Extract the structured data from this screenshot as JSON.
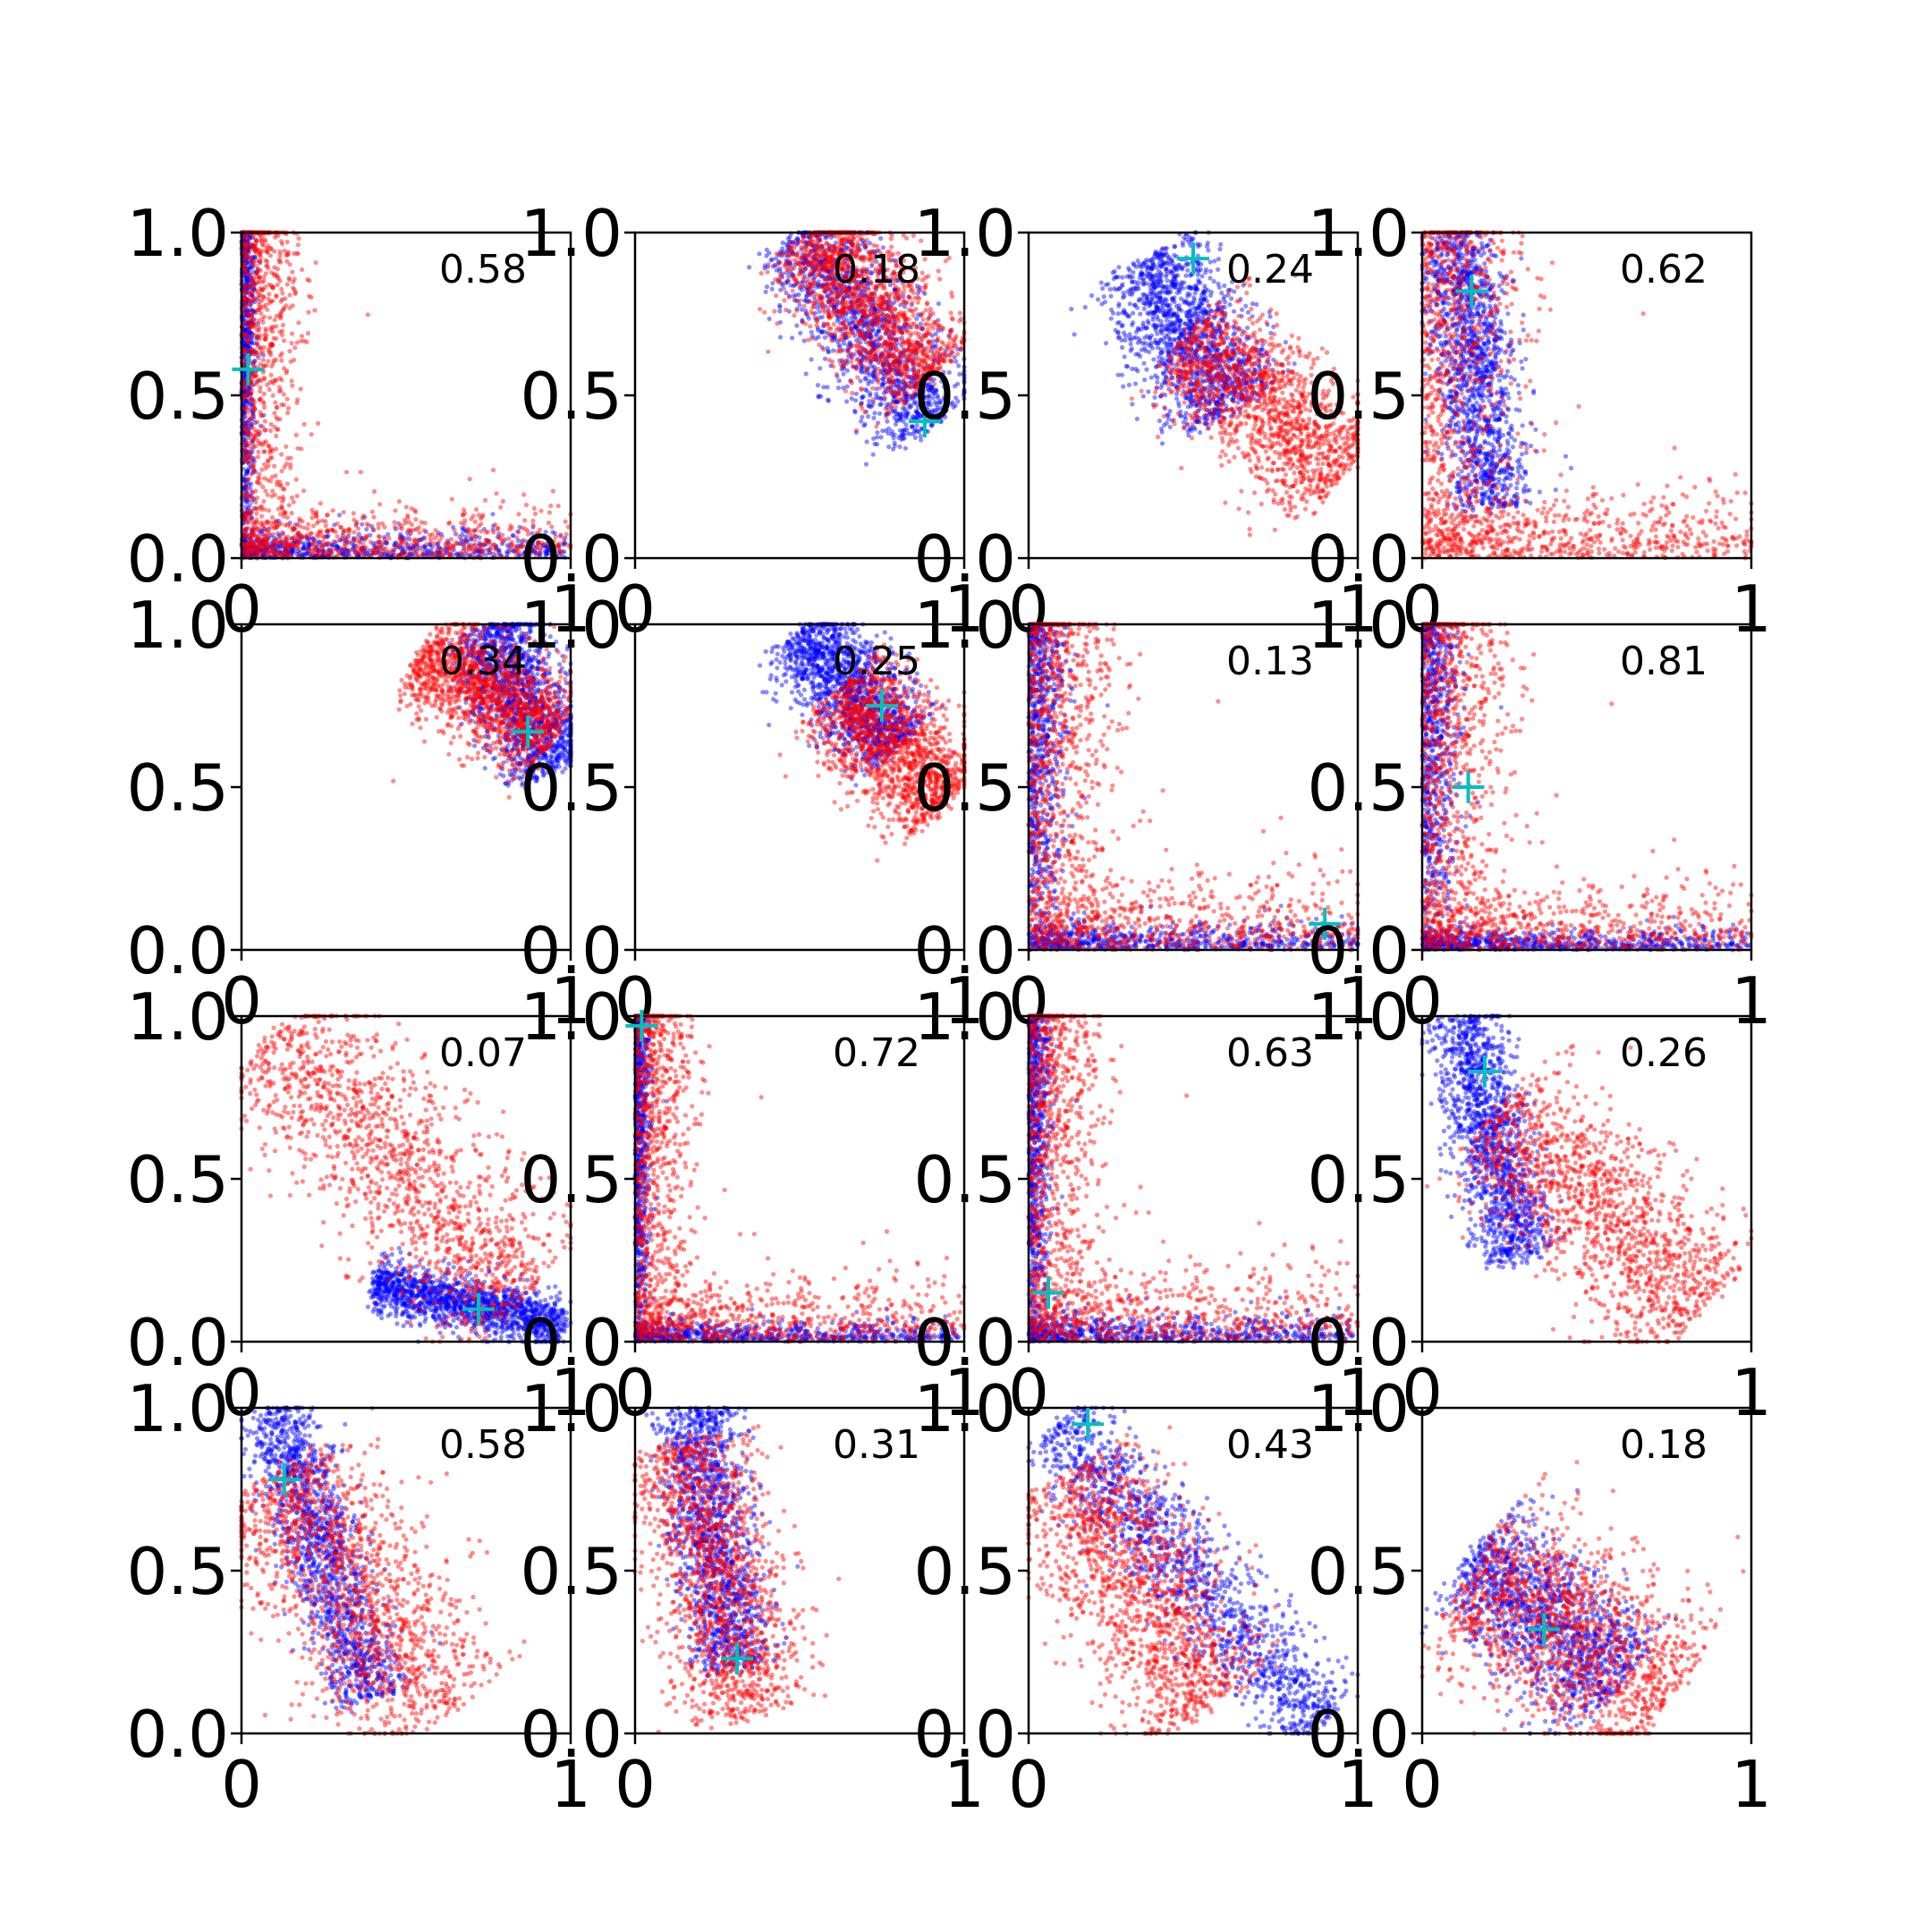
{
  "colors": {
    "series_a": "#0000ff",
    "series_b": "#ff0000",
    "marker": "#00bfbf",
    "axis": "#000000"
  },
  "chart_data": {
    "type": "scatter",
    "grid": "4x4",
    "grid_lines": false,
    "legend": "none",
    "xlim": [
      0,
      1
    ],
    "ylim": [
      0,
      1
    ],
    "x_tick_labels": [
      "0",
      "1"
    ],
    "y_tick_labels": [
      "0.0",
      "0.5",
      "1.0"
    ],
    "panels": [
      {
        "label": "0.58",
        "marker": [
          0.02,
          0.58
        ],
        "blue": {
          "shape": "L",
          "xw": 0.02,
          "yw": 0.04,
          "cx": 0.03,
          "cy": 0.03
        },
        "red": {
          "shape": "L",
          "xw": 0.08,
          "yw": 0.08,
          "cx": 0.12,
          "cy": 0.1
        }
      },
      {
        "label": "0.18",
        "marker": [
          0.88,
          0.42
        ],
        "blue": {
          "shape": "band",
          "from": [
            0.5,
            1.0
          ],
          "to": [
            0.9,
            0.4
          ],
          "width": 0.08
        },
        "red": {
          "shape": "band",
          "from": [
            0.52,
            1.0
          ],
          "to": [
            0.9,
            0.55
          ],
          "width": 0.09
        }
      },
      {
        "label": "0.24",
        "marker": [
          0.5,
          0.92
        ],
        "blue": {
          "shape": "band",
          "from": [
            0.35,
            0.92
          ],
          "to": [
            0.62,
            0.45
          ],
          "width": 0.09
        },
        "red": {
          "shape": "band",
          "from": [
            0.48,
            0.68
          ],
          "to": [
            0.95,
            0.25
          ],
          "width": 0.1
        }
      },
      {
        "label": "0.62",
        "marker": [
          0.15,
          0.82
        ],
        "blue": {
          "shape": "band",
          "from": [
            0.1,
            1.0
          ],
          "to": [
            0.22,
            0.15
          ],
          "width": 0.06
        },
        "red": {
          "shape": "L",
          "xw": 0.14,
          "yw": 0.1,
          "cx": 0.22,
          "cy": 0.12
        }
      },
      {
        "label": "0.34",
        "marker": [
          0.87,
          0.67
        ],
        "blue": {
          "shape": "band",
          "from": [
            0.75,
            1.0
          ],
          "to": [
            0.95,
            0.55
          ],
          "width": 0.07
        },
        "red": {
          "shape": "band",
          "from": [
            0.55,
            0.92
          ],
          "to": [
            0.95,
            0.65
          ],
          "width": 0.08
        }
      },
      {
        "label": "0.25",
        "marker": [
          0.75,
          0.75
        ],
        "blue": {
          "shape": "band",
          "from": [
            0.5,
            0.98
          ],
          "to": [
            0.8,
            0.62
          ],
          "width": 0.07
        },
        "red": {
          "shape": "band",
          "from": [
            0.62,
            0.8
          ],
          "to": [
            0.95,
            0.45
          ],
          "width": 0.09
        }
      },
      {
        "label": "0.13",
        "marker": [
          0.9,
          0.08
        ],
        "blue": {
          "shape": "L",
          "xw": 0.05,
          "yw": 0.04,
          "cx": 0.22,
          "cy": 0.12
        },
        "red": {
          "shape": "L",
          "xw": 0.12,
          "yw": 0.12,
          "cx": 0.2,
          "cy": 0.2
        }
      },
      {
        "label": "0.81",
        "marker": [
          0.14,
          0.5
        ],
        "blue": {
          "shape": "L",
          "xw": 0.05,
          "yw": 0.03,
          "cx": 0.08,
          "cy": 0.08
        },
        "red": {
          "shape": "L",
          "xw": 0.12,
          "yw": 0.1,
          "cx": 0.15,
          "cy": 0.15
        }
      },
      {
        "label": "0.07",
        "marker": [
          0.72,
          0.1
        ],
        "blue": {
          "shape": "band",
          "from": [
            0.4,
            0.18
          ],
          "to": [
            0.98,
            0.05
          ],
          "width": 0.04
        },
        "red": {
          "shape": "band",
          "from": [
            0.1,
            0.95
          ],
          "to": [
            0.85,
            0.12
          ],
          "width": 0.12
        }
      },
      {
        "label": "0.72",
        "marker": [
          0.02,
          0.97
        ],
        "blue": {
          "shape": "L",
          "xw": 0.02,
          "yw": 0.03,
          "cx": 0.04,
          "cy": 0.04
        },
        "red": {
          "shape": "L",
          "xw": 0.08,
          "yw": 0.1,
          "cx": 0.12,
          "cy": 0.12
        }
      },
      {
        "label": "0.63",
        "marker": [
          0.06,
          0.15
        ],
        "blue": {
          "shape": "L",
          "xw": 0.03,
          "yw": 0.04,
          "cx": 0.05,
          "cy": 0.05
        },
        "red": {
          "shape": "L",
          "xw": 0.1,
          "yw": 0.12,
          "cx": 0.15,
          "cy": 0.15
        }
      },
      {
        "label": "0.26",
        "marker": [
          0.19,
          0.83
        ],
        "blue": {
          "shape": "band",
          "from": [
            0.12,
            1.0
          ],
          "to": [
            0.3,
            0.25
          ],
          "width": 0.06
        },
        "red": {
          "shape": "band",
          "from": [
            0.22,
            0.7
          ],
          "to": [
            0.85,
            0.1
          ],
          "width": 0.12
        }
      },
      {
        "label": "0.58",
        "marker": [
          0.13,
          0.78
        ],
        "blue": {
          "shape": "band",
          "from": [
            0.1,
            1.0
          ],
          "to": [
            0.4,
            0.1
          ],
          "width": 0.06
        },
        "red": {
          "shape": "band",
          "from": [
            0.1,
            0.8
          ],
          "to": [
            0.6,
            0.05
          ],
          "width": 0.13
        }
      },
      {
        "label": "0.31",
        "marker": [
          0.31,
          0.23
        ],
        "blue": {
          "shape": "band",
          "from": [
            0.18,
            1.0
          ],
          "to": [
            0.3,
            0.2
          ],
          "width": 0.06
        },
        "red": {
          "shape": "band",
          "from": [
            0.15,
            0.9
          ],
          "to": [
            0.35,
            0.05
          ],
          "width": 0.1
        }
      },
      {
        "label": "0.43",
        "marker": [
          0.18,
          0.95
        ],
        "blue": {
          "shape": "band",
          "from": [
            0.08,
            0.95
          ],
          "to": [
            0.9,
            0.02
          ],
          "width": 0.07
        },
        "red": {
          "shape": "band",
          "from": [
            0.12,
            0.8
          ],
          "to": [
            0.55,
            0.08
          ],
          "width": 0.12
        }
      },
      {
        "label": "0.18",
        "marker": [
          0.37,
          0.32
        ],
        "blue": {
          "shape": "band",
          "from": [
            0.15,
            0.55
          ],
          "to": [
            0.6,
            0.15
          ],
          "width": 0.1
        },
        "red": {
          "shape": "band",
          "from": [
            0.15,
            0.5
          ],
          "to": [
            0.75,
            0.1
          ],
          "width": 0.14
        }
      }
    ]
  }
}
